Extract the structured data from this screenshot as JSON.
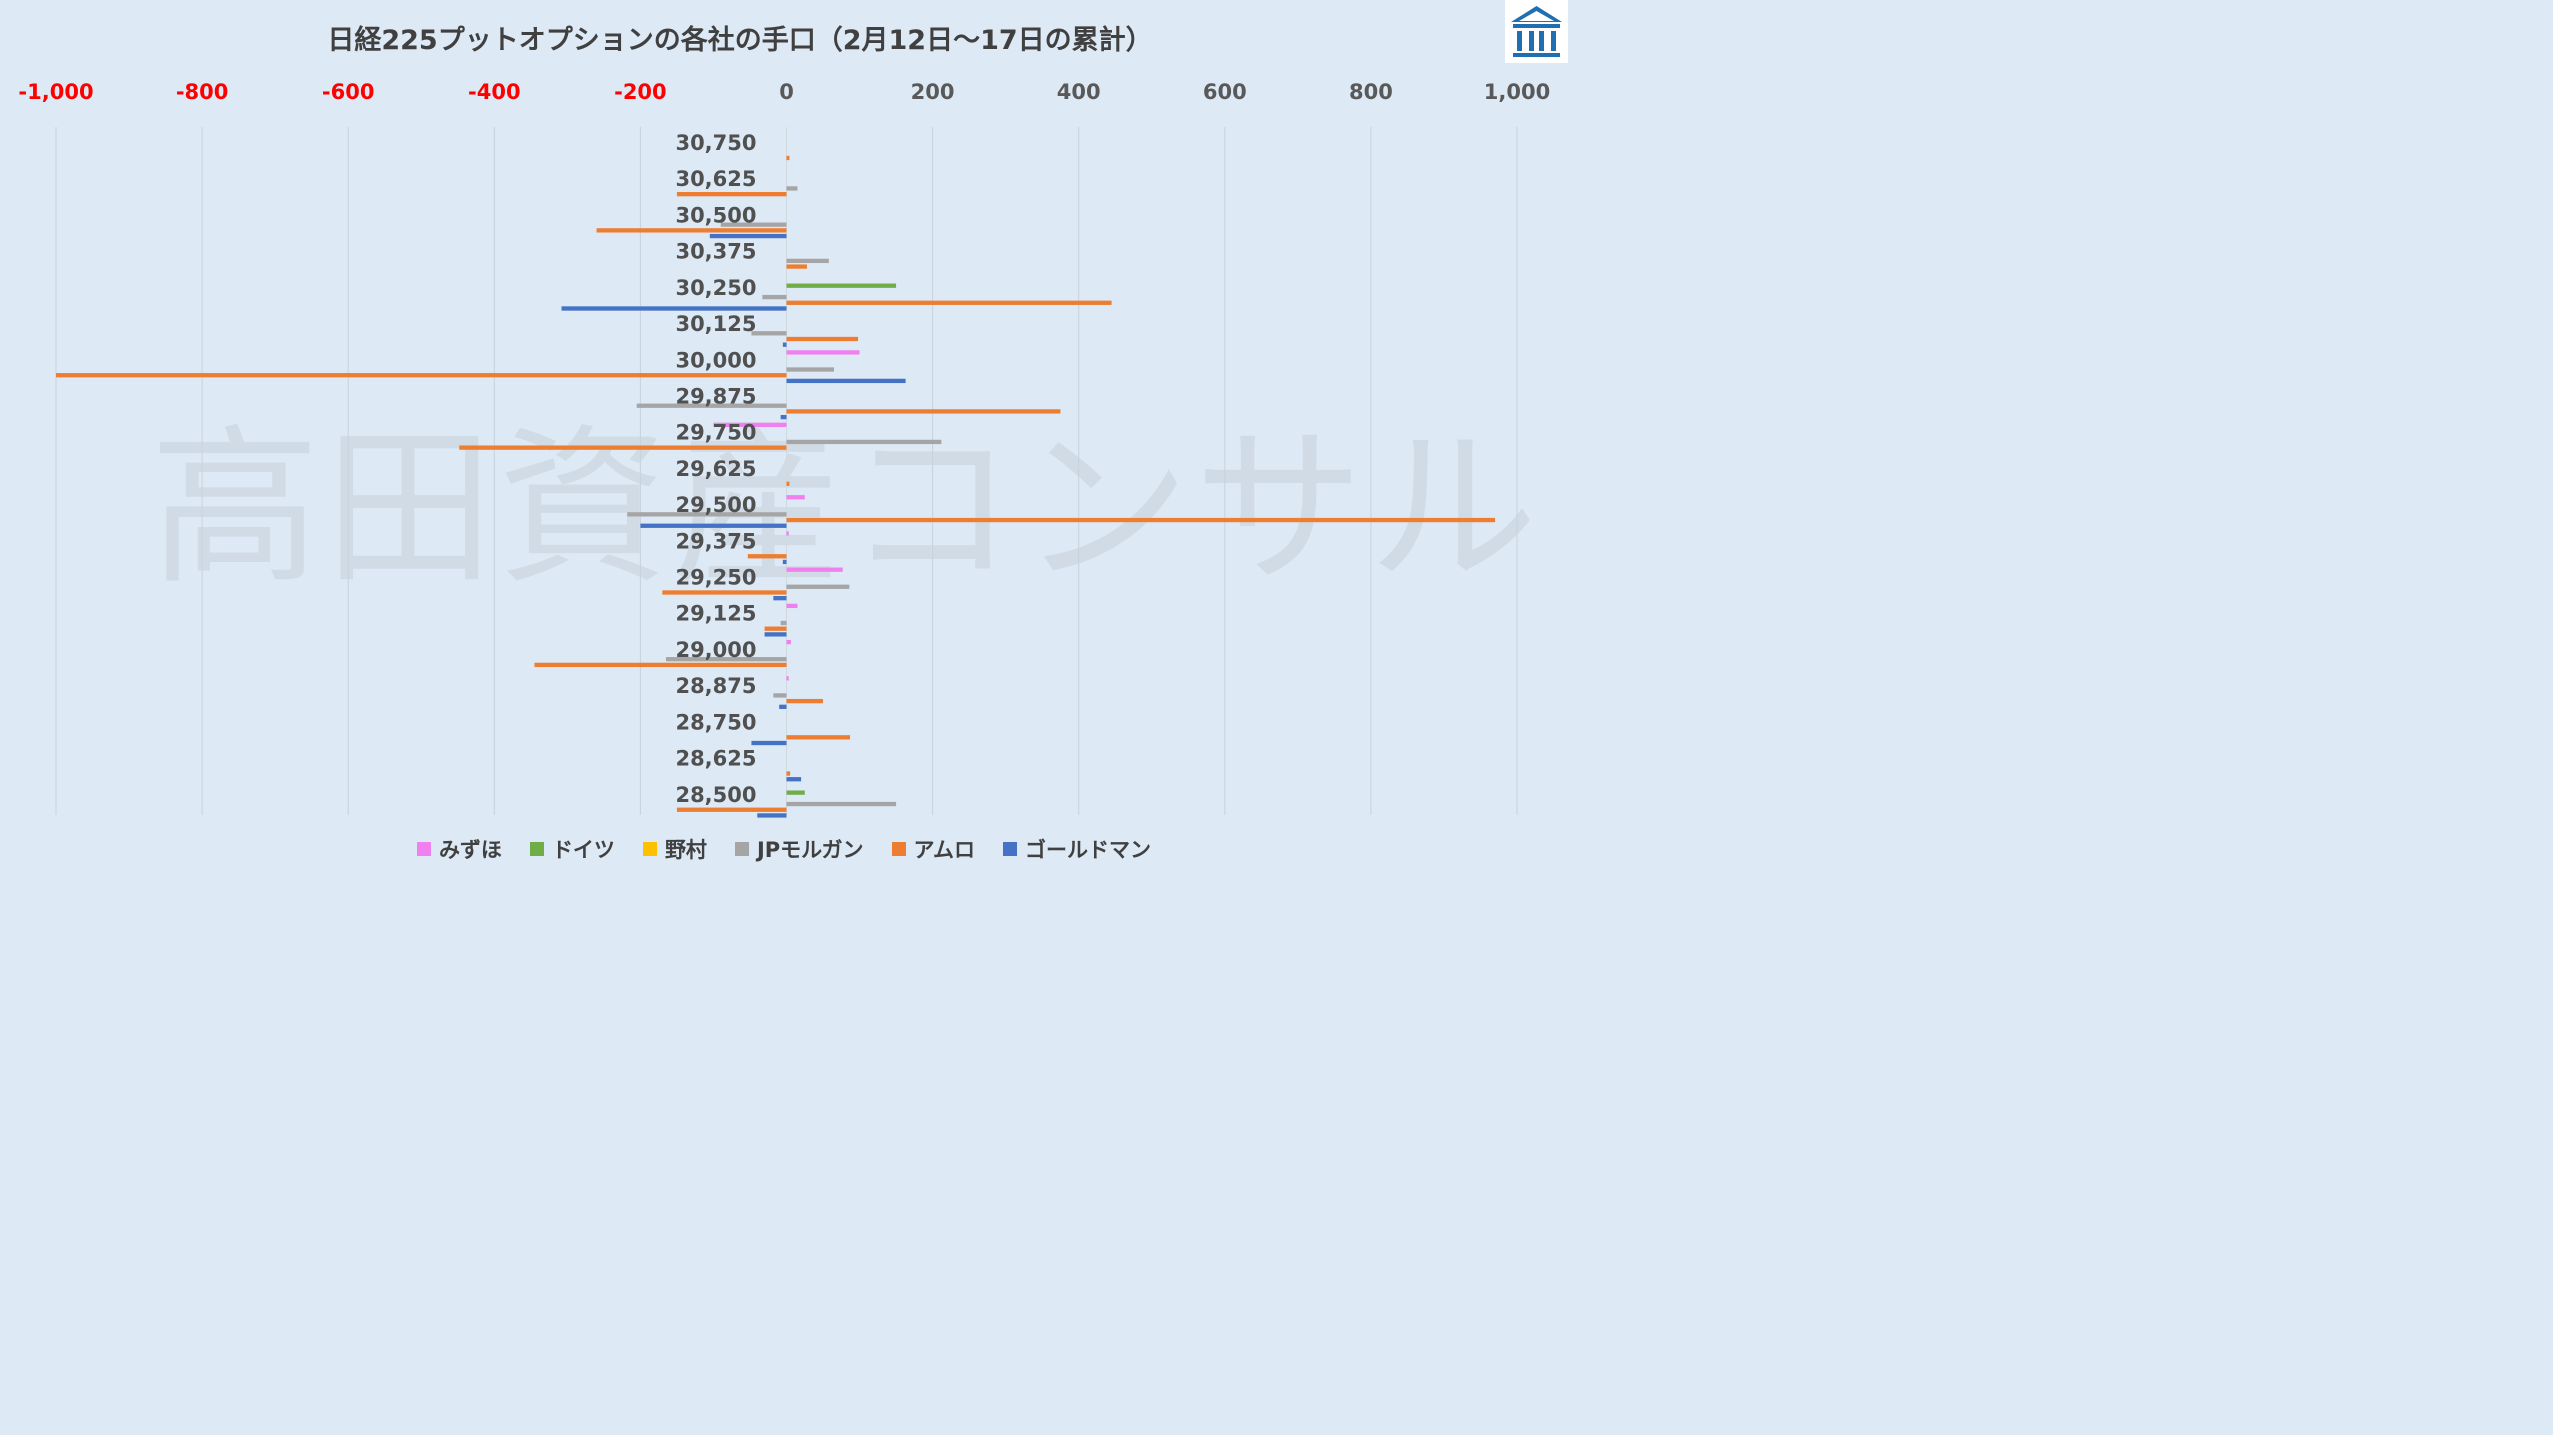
{
  "title": "日経225プットオプションの各社の手口（2月12日〜17日の累計）",
  "watermark": "高田資産コンサル",
  "logo_icon": "building-logo-icon",
  "colors": {
    "みずほ": "#f07ff0",
    "ドイツ": "#70ad47",
    "野村": "#ffc000",
    "JPモルガン": "#a5a5a5",
    "アムロ": "#ed7d31",
    "ゴールドマン": "#4472c4",
    "negative_tick": "#ff0000",
    "positive_tick": "#595959"
  },
  "chart_data": {
    "type": "bar",
    "orientation": "horizontal",
    "xlim": [
      -1000,
      1000
    ],
    "x_ticks": [
      "-1,000",
      "-800",
      "-600",
      "-400",
      "-200",
      "0",
      "200",
      "400",
      "600",
      "800",
      "1,000"
    ],
    "x_tick_values": [
      -1000,
      -800,
      -600,
      -400,
      -200,
      0,
      200,
      400,
      600,
      800,
      1000
    ],
    "categories": [
      "30,750",
      "30,625",
      "30,500",
      "30,375",
      "30,250",
      "30,125",
      "30,000",
      "29,875",
      "29,750",
      "29,625",
      "29,500",
      "29,375",
      "29,250",
      "29,125",
      "29,000",
      "28,875",
      "28,750",
      "28,625",
      "28,500"
    ],
    "series": [
      {
        "name": "みずほ",
        "values": [
          0,
          0,
          0,
          0,
          0,
          0,
          100,
          0,
          -100,
          0,
          25,
          3,
          77,
          15,
          6,
          3,
          0,
          0,
          0
        ]
      },
      {
        "name": "ドイツ",
        "values": [
          0,
          0,
          0,
          0,
          150,
          0,
          0,
          0,
          0,
          0,
          0,
          0,
          0,
          0,
          0,
          0,
          0,
          0,
          25
        ]
      },
      {
        "name": "野村",
        "values": [
          0,
          0,
          0,
          0,
          0,
          0,
          0,
          0,
          0,
          0,
          0,
          0,
          0,
          0,
          0,
          0,
          0,
          0,
          0
        ]
      },
      {
        "name": "JPモルガン",
        "values": [
          0,
          15,
          -90,
          58,
          -33,
          -48,
          65,
          -205,
          212,
          0,
          -218,
          0,
          86,
          -8,
          -165,
          -18,
          0,
          0,
          150
        ]
      },
      {
        "name": "アムロ",
        "values": [
          4,
          -150,
          -260,
          28,
          445,
          98,
          -1000,
          375,
          -448,
          4,
          970,
          -53,
          -170,
          -30,
          -345,
          50,
          87,
          5,
          -150
        ]
      },
      {
        "name": "ゴールドマン",
        "values": [
          0,
          0,
          -105,
          0,
          -308,
          -5,
          163,
          -8,
          0,
          0,
          -200,
          -5,
          -18,
          -30,
          0,
          -10,
          -48,
          20,
          -40
        ]
      }
    ],
    "legend": [
      "みずほ",
      "ドイツ",
      "野村",
      "JPモルガン",
      "アムロ",
      "ゴールドマン"
    ],
    "legend_position": "bottom",
    "grid": true
  }
}
